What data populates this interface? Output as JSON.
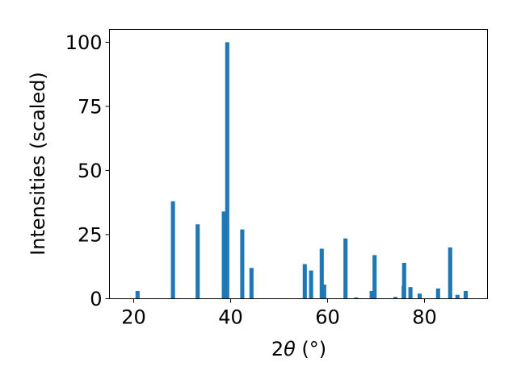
{
  "chart_data": {
    "type": "bar",
    "title": "",
    "xlabel": "2θ (°)",
    "xlabel_parts": {
      "prefix": "2",
      "theta": "θ",
      "suffix": " (°)"
    },
    "ylabel": "Intensities (scaled)",
    "xlim": [
      15,
      93
    ],
    "ylim": [
      0,
      105
    ],
    "xticks": [
      20,
      40,
      60,
      80
    ],
    "yticks": [
      0,
      25,
      50,
      75,
      100
    ],
    "grid": false,
    "bar_color": "#1f77b4",
    "x": [
      20.8,
      28.1,
      33.2,
      38.6,
      39.3,
      42.4,
      44.3,
      55.3,
      56.6,
      58.8,
      59.3,
      63.7,
      65.9,
      69.1,
      69.7,
      74.0,
      75.7,
      75.8,
      77.1,
      79.0,
      82.8,
      85.3,
      86.8,
      88.5
    ],
    "values": [
      3,
      38,
      29,
      34,
      100,
      27,
      12,
      13.5,
      11,
      19.5,
      5.5,
      23.5,
      0.5,
      3,
      17,
      0.7,
      5,
      14,
      4.5,
      2,
      4,
      20,
      1.5,
      3
    ]
  }
}
